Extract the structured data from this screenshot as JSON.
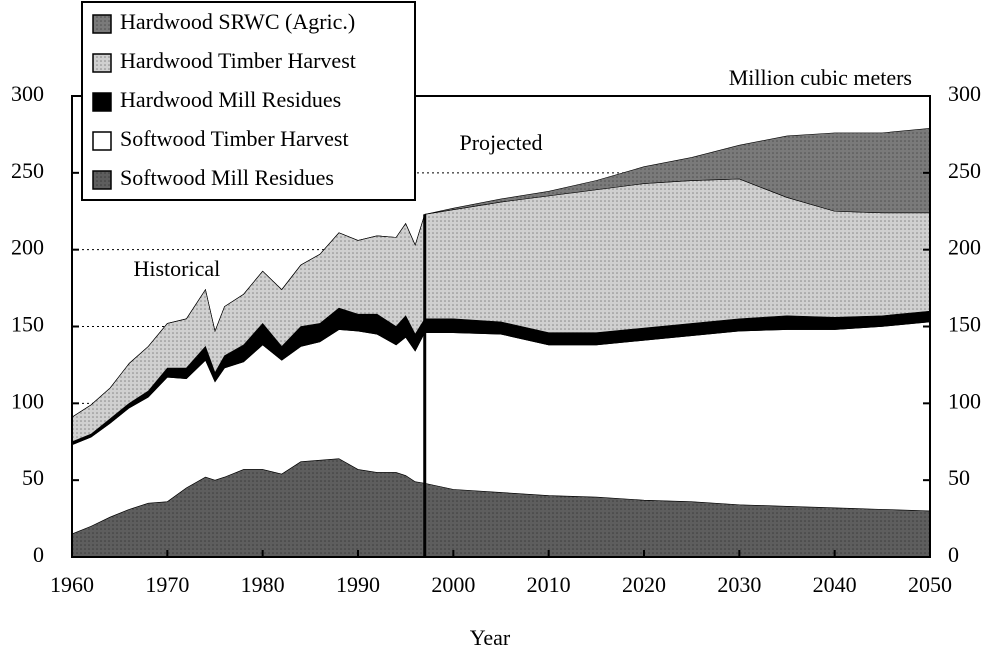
{
  "chart_data": {
    "type": "stacked_area",
    "y_axis_label": "Million cubic meters",
    "x_axis_label": "Year",
    "annotations": [
      {
        "text": "Historical",
        "x": 1971,
        "y": 186
      },
      {
        "text": "Projected",
        "x": 2005,
        "y": 268
      }
    ],
    "projection_start": 1997,
    "x": [
      1960,
      1962,
      1964,
      1966,
      1968,
      1970,
      1972,
      1974,
      1975,
      1976,
      1978,
      1980,
      1982,
      1984,
      1986,
      1988,
      1990,
      1992,
      1994,
      1995,
      1996,
      1997,
      2000,
      2005,
      2010,
      2015,
      2020,
      2025,
      2030,
      2035,
      2040,
      2045,
      2050
    ],
    "series": [
      {
        "name": "Softwood Mill Residues",
        "color": "#5e5e5e",
        "values": [
          15,
          20,
          26,
          31,
          35,
          36,
          45,
          52,
          50,
          52,
          57,
          57,
          54,
          62,
          63,
          64,
          57,
          55,
          55,
          53,
          49,
          48,
          44,
          42,
          40,
          39,
          37,
          36,
          34,
          33,
          32,
          31,
          30
        ]
      },
      {
        "name": "Softwood Timber Harvest",
        "color": "#ffffff",
        "values": [
          58,
          58,
          61,
          66,
          69,
          81,
          71,
          76,
          64,
          71,
          70,
          81,
          74,
          75,
          77,
          84,
          90,
          90,
          83,
          90,
          85,
          98,
          102,
          103,
          98,
          99,
          104,
          108,
          113,
          115,
          116,
          119,
          123
        ]
      },
      {
        "name": "Hardwood Mill Residues",
        "color": "#000000",
        "values": [
          2,
          2,
          3,
          3,
          4,
          6,
          7,
          9,
          6,
          8,
          11,
          14,
          9,
          13,
          12,
          14,
          11,
          13,
          12,
          14,
          11,
          9,
          9,
          8,
          8,
          8,
          8,
          8,
          8,
          9,
          8,
          7,
          7
        ]
      },
      {
        "name": "Hardwood Timber Harvest",
        "color": "#d0d0d0",
        "values": [
          16,
          19,
          20,
          26,
          29,
          29,
          32,
          37,
          27,
          32,
          33,
          34,
          37,
          40,
          45,
          49,
          48,
          51,
          58,
          60,
          58,
          68,
          71,
          78,
          89,
          93,
          94,
          93,
          91,
          77,
          69,
          67,
          64
        ]
      },
      {
        "name": "Hardwood SRWC (Agric.)",
        "color": "#7a7a7a",
        "values": [
          0,
          0,
          0,
          0,
          0,
          0,
          0,
          0,
          0,
          0,
          0,
          0,
          0,
          0,
          0,
          0,
          0,
          0,
          0,
          0,
          0,
          0,
          1,
          2,
          3,
          6,
          11,
          15,
          22,
          40,
          51,
          52,
          55
        ]
      }
    ],
    "xlim": [
      1960,
      2050
    ],
    "xticks": [
      1960,
      1970,
      1980,
      1990,
      2000,
      2010,
      2020,
      2030,
      2040,
      2050
    ],
    "ylim": [
      0,
      300
    ],
    "yticks": [
      0,
      50,
      100,
      150,
      200,
      250,
      300
    ],
    "grid": true,
    "legend": "upper left"
  }
}
